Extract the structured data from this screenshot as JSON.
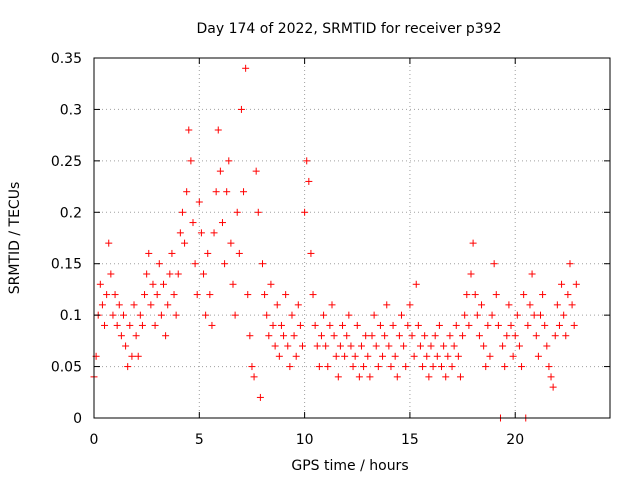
{
  "chart_data": {
    "type": "scatter",
    "title": "Day 174 of 2022, SRMTID for receiver p392",
    "xlabel": "GPS time / hours",
    "ylabel": "SRMTID / TECUs",
    "xlim": [
      0,
      24.5
    ],
    "ylim": [
      0,
      0.35
    ],
    "xticks": [
      0,
      5,
      10,
      15,
      20
    ],
    "xtick_labels": [
      "0",
      "5",
      "10",
      "15",
      "20"
    ],
    "yticks": [
      0,
      0.05,
      0.1,
      0.15,
      0.2,
      0.25,
      0.3,
      0.35
    ],
    "ytick_labels": [
      "0",
      "0.05",
      "0.1",
      "0.15",
      "0.2",
      "0.25",
      "0.3",
      "0.35"
    ],
    "grid": true,
    "marker": "plus",
    "series_color": "#ff0000",
    "series": [
      {
        "name": "SRMTID",
        "points": [
          [
            0.0,
            0.04
          ],
          [
            0.1,
            0.06
          ],
          [
            0.2,
            0.1
          ],
          [
            0.3,
            0.13
          ],
          [
            0.4,
            0.11
          ],
          [
            0.5,
            0.09
          ],
          [
            0.6,
            0.12
          ],
          [
            0.7,
            0.17
          ],
          [
            0.8,
            0.14
          ],
          [
            0.9,
            0.1
          ],
          [
            1.0,
            0.12
          ],
          [
            1.1,
            0.09
          ],
          [
            1.2,
            0.11
          ],
          [
            1.3,
            0.08
          ],
          [
            1.4,
            0.1
          ],
          [
            1.5,
            0.07
          ],
          [
            1.6,
            0.05
          ],
          [
            1.7,
            0.09
          ],
          [
            1.8,
            0.06
          ],
          [
            1.9,
            0.11
          ],
          [
            2.0,
            0.08
          ],
          [
            2.1,
            0.06
          ],
          [
            2.2,
            0.1
          ],
          [
            2.3,
            0.09
          ],
          [
            2.4,
            0.12
          ],
          [
            2.5,
            0.14
          ],
          [
            2.6,
            0.16
          ],
          [
            2.7,
            0.11
          ],
          [
            2.8,
            0.13
          ],
          [
            2.9,
            0.09
          ],
          [
            3.0,
            0.12
          ],
          [
            3.1,
            0.15
          ],
          [
            3.2,
            0.1
          ],
          [
            3.3,
            0.13
          ],
          [
            3.4,
            0.08
          ],
          [
            3.5,
            0.11
          ],
          [
            3.6,
            0.14
          ],
          [
            3.7,
            0.16
          ],
          [
            3.8,
            0.12
          ],
          [
            3.9,
            0.1
          ],
          [
            4.0,
            0.14
          ],
          [
            4.1,
            0.18
          ],
          [
            4.2,
            0.2
          ],
          [
            4.3,
            0.17
          ],
          [
            4.4,
            0.22
          ],
          [
            4.5,
            0.28
          ],
          [
            4.6,
            0.25
          ],
          [
            4.7,
            0.19
          ],
          [
            4.8,
            0.15
          ],
          [
            4.9,
            0.12
          ],
          [
            5.0,
            0.21
          ],
          [
            5.1,
            0.18
          ],
          [
            5.2,
            0.14
          ],
          [
            5.3,
            0.1
          ],
          [
            5.4,
            0.16
          ],
          [
            5.5,
            0.12
          ],
          [
            5.6,
            0.09
          ],
          [
            5.7,
            0.18
          ],
          [
            5.8,
            0.22
          ],
          [
            5.9,
            0.28
          ],
          [
            6.0,
            0.24
          ],
          [
            6.1,
            0.19
          ],
          [
            6.2,
            0.15
          ],
          [
            6.3,
            0.22
          ],
          [
            6.4,
            0.25
          ],
          [
            6.5,
            0.17
          ],
          [
            6.6,
            0.13
          ],
          [
            6.7,
            0.1
          ],
          [
            6.8,
            0.2
          ],
          [
            6.9,
            0.16
          ],
          [
            7.0,
            0.3
          ],
          [
            7.1,
            0.22
          ],
          [
            7.2,
            0.34
          ],
          [
            7.3,
            0.12
          ],
          [
            7.4,
            0.08
          ],
          [
            7.5,
            0.05
          ],
          [
            7.6,
            0.04
          ],
          [
            7.7,
            0.24
          ],
          [
            7.8,
            0.2
          ],
          [
            7.9,
            0.02
          ],
          [
            8.0,
            0.15
          ],
          [
            8.1,
            0.12
          ],
          [
            8.2,
            0.1
          ],
          [
            8.3,
            0.08
          ],
          [
            8.4,
            0.13
          ],
          [
            8.5,
            0.09
          ],
          [
            8.6,
            0.07
          ],
          [
            8.7,
            0.11
          ],
          [
            8.8,
            0.06
          ],
          [
            8.9,
            0.09
          ],
          [
            9.0,
            0.08
          ],
          [
            9.1,
            0.12
          ],
          [
            9.2,
            0.07
          ],
          [
            9.3,
            0.05
          ],
          [
            9.4,
            0.1
          ],
          [
            9.5,
            0.08
          ],
          [
            9.6,
            0.06
          ],
          [
            9.7,
            0.11
          ],
          [
            9.8,
            0.09
          ],
          [
            9.9,
            0.07
          ],
          [
            10.0,
            0.2
          ],
          [
            10.1,
            0.25
          ],
          [
            10.2,
            0.23
          ],
          [
            10.3,
            0.16
          ],
          [
            10.4,
            0.12
          ],
          [
            10.5,
            0.09
          ],
          [
            10.6,
            0.07
          ],
          [
            10.7,
            0.05
          ],
          [
            10.8,
            0.08
          ],
          [
            10.9,
            0.1
          ],
          [
            11.0,
            0.07
          ],
          [
            11.1,
            0.05
          ],
          [
            11.2,
            0.09
          ],
          [
            11.3,
            0.11
          ],
          [
            11.4,
            0.08
          ],
          [
            11.5,
            0.06
          ],
          [
            11.6,
            0.04
          ],
          [
            11.7,
            0.07
          ],
          [
            11.8,
            0.09
          ],
          [
            11.9,
            0.06
          ],
          [
            12.0,
            0.08
          ],
          [
            12.1,
            0.1
          ],
          [
            12.2,
            0.07
          ],
          [
            12.3,
            0.05
          ],
          [
            12.4,
            0.06
          ],
          [
            12.5,
            0.09
          ],
          [
            12.6,
            0.04
          ],
          [
            12.7,
            0.07
          ],
          [
            12.8,
            0.05
          ],
          [
            12.9,
            0.08
          ],
          [
            13.0,
            0.06
          ],
          [
            13.1,
            0.04
          ],
          [
            13.2,
            0.08
          ],
          [
            13.3,
            0.1
          ],
          [
            13.4,
            0.07
          ],
          [
            13.5,
            0.05
          ],
          [
            13.6,
            0.09
          ],
          [
            13.7,
            0.06
          ],
          [
            13.8,
            0.08
          ],
          [
            13.9,
            0.11
          ],
          [
            14.0,
            0.07
          ],
          [
            14.1,
            0.05
          ],
          [
            14.2,
            0.09
          ],
          [
            14.3,
            0.06
          ],
          [
            14.4,
            0.04
          ],
          [
            14.5,
            0.08
          ],
          [
            14.6,
            0.1
          ],
          [
            14.7,
            0.07
          ],
          [
            14.8,
            0.05
          ],
          [
            14.9,
            0.09
          ],
          [
            15.0,
            0.11
          ],
          [
            15.1,
            0.08
          ],
          [
            15.2,
            0.06
          ],
          [
            15.3,
            0.13
          ],
          [
            15.4,
            0.09
          ],
          [
            15.5,
            0.07
          ],
          [
            15.6,
            0.05
          ],
          [
            15.7,
            0.08
          ],
          [
            15.8,
            0.06
          ],
          [
            15.9,
            0.04
          ],
          [
            16.0,
            0.07
          ],
          [
            16.1,
            0.05
          ],
          [
            16.2,
            0.08
          ],
          [
            16.3,
            0.06
          ],
          [
            16.4,
            0.09
          ],
          [
            16.5,
            0.05
          ],
          [
            16.6,
            0.07
          ],
          [
            16.7,
            0.04
          ],
          [
            16.8,
            0.06
          ],
          [
            16.9,
            0.08
          ],
          [
            17.0,
            0.05
          ],
          [
            17.1,
            0.07
          ],
          [
            17.2,
            0.09
          ],
          [
            17.3,
            0.06
          ],
          [
            17.4,
            0.04
          ],
          [
            17.5,
            0.08
          ],
          [
            17.6,
            0.1
          ],
          [
            17.7,
            0.12
          ],
          [
            17.8,
            0.09
          ],
          [
            17.9,
            0.14
          ],
          [
            18.0,
            0.17
          ],
          [
            18.1,
            0.12
          ],
          [
            18.2,
            0.1
          ],
          [
            18.3,
            0.08
          ],
          [
            18.4,
            0.11
          ],
          [
            18.5,
            0.07
          ],
          [
            18.6,
            0.05
          ],
          [
            18.7,
            0.09
          ],
          [
            18.8,
            0.06
          ],
          [
            18.9,
            0.1
          ],
          [
            19.0,
            0.15
          ],
          [
            19.1,
            0.12
          ],
          [
            19.2,
            0.09
          ],
          [
            19.3,
            0.0
          ],
          [
            19.4,
            0.07
          ],
          [
            19.5,
            0.05
          ],
          [
            19.6,
            0.08
          ],
          [
            19.7,
            0.11
          ],
          [
            19.8,
            0.09
          ],
          [
            19.9,
            0.06
          ],
          [
            20.0,
            0.08
          ],
          [
            20.1,
            0.1
          ],
          [
            20.2,
            0.07
          ],
          [
            20.3,
            0.05
          ],
          [
            20.4,
            0.12
          ],
          [
            20.5,
            0.0
          ],
          [
            20.6,
            0.09
          ],
          [
            20.7,
            0.11
          ],
          [
            20.8,
            0.14
          ],
          [
            20.9,
            0.1
          ],
          [
            21.0,
            0.08
          ],
          [
            21.1,
            0.06
          ],
          [
            21.2,
            0.1
          ],
          [
            21.3,
            0.12
          ],
          [
            21.4,
            0.09
          ],
          [
            21.5,
            0.07
          ],
          [
            21.6,
            0.05
          ],
          [
            21.7,
            0.04
          ],
          [
            21.8,
            0.03
          ],
          [
            21.9,
            0.08
          ],
          [
            22.0,
            0.11
          ],
          [
            22.1,
            0.09
          ],
          [
            22.2,
            0.13
          ],
          [
            22.3,
            0.1
          ],
          [
            22.4,
            0.08
          ],
          [
            22.5,
            0.12
          ],
          [
            22.6,
            0.15
          ],
          [
            22.7,
            0.11
          ],
          [
            22.8,
            0.09
          ],
          [
            22.9,
            0.13
          ]
        ]
      }
    ]
  }
}
